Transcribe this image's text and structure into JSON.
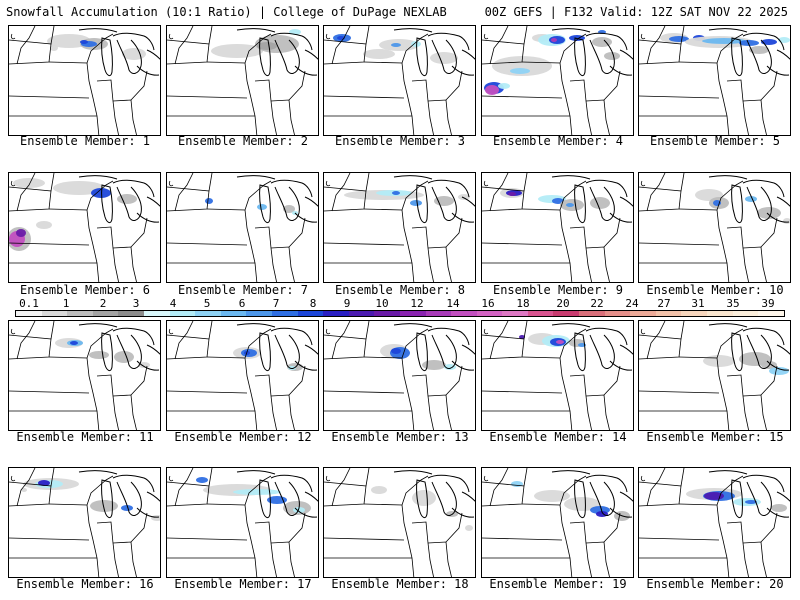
{
  "header": {
    "left": "Snowfall Accumulation (10:1 Ratio) | College of DuPage NEXLAB",
    "right": "00Z GEFS | F132 Valid: 12Z SAT NOV 22 2025"
  },
  "legend": {
    "ticks": [
      "0.1",
      "1",
      "2",
      "3",
      "4",
      "5",
      "6",
      "7",
      "8",
      "9",
      "10",
      "12",
      "14",
      "16",
      "18",
      "20",
      "22",
      "24",
      "27",
      "31",
      "35",
      "39"
    ],
    "colors": [
      "#f2f2f2",
      "#d9d9d9",
      "#bdbdbd",
      "#a3a3a3",
      "#8c8c8c",
      "#d9f7fb",
      "#b3ecf7",
      "#8fd3f5",
      "#6bb8f0",
      "#4d97ea",
      "#2f6fe3",
      "#1c46d9",
      "#2a1fc4",
      "#4b1ab0",
      "#6a1aa8",
      "#8a23b0",
      "#a83ab8",
      "#c24fc0",
      "#d463c4",
      "#de78c4",
      "#d8538f",
      "#c83b6f",
      "#d96f7a",
      "#e58f8a",
      "#edaa98",
      "#f3c2aa",
      "#f7d6bd",
      "#fae6cf",
      "#fcefdc",
      "#fef6ea"
    ]
  },
  "members": [
    {
      "label": "Ensemble Member: 1"
    },
    {
      "label": "Ensemble Member: 2"
    },
    {
      "label": "Ensemble Member: 3"
    },
    {
      "label": "Ensemble Member: 4"
    },
    {
      "label": "Ensemble Member: 5"
    },
    {
      "label": "Ensemble Member: 6"
    },
    {
      "label": "Ensemble Member: 7"
    },
    {
      "label": "Ensemble Member: 8"
    },
    {
      "label": "Ensemble Member: 9"
    },
    {
      "label": "Ensemble Member: 10"
    },
    {
      "label": "Ensemble Member: 11"
    },
    {
      "label": "Ensemble Member: 12"
    },
    {
      "label": "Ensemble Member: 13"
    },
    {
      "label": "Ensemble Member: 14"
    },
    {
      "label": "Ensemble Member: 15"
    },
    {
      "label": "Ensemble Member: 16"
    },
    {
      "label": "Ensemble Member: 17"
    },
    {
      "label": "Ensemble Member: 18"
    },
    {
      "label": "Ensemble Member: 19"
    },
    {
      "label": "Ensemble Member: 20"
    }
  ]
}
